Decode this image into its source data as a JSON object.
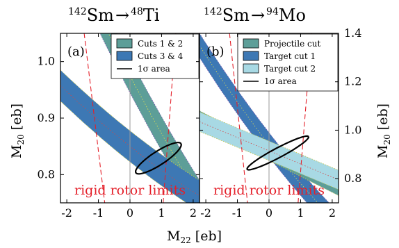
{
  "colors": {
    "cuts12": "#5d9e98",
    "cuts34": "#3d78b4",
    "projectile": "#5d9e98",
    "target1": "#3d78b4",
    "target2": "#a8d9e4",
    "rigid": "#e4202a",
    "frame": "#000000",
    "zero_line": "#9a9a9a"
  },
  "axes": {
    "x_label_main": "M",
    "x_label_sub": "22",
    "x_label_unit": " [eb]",
    "y_label_main": "M",
    "y_label_sub": "20",
    "y_label_unit": " [eb]",
    "x_ticks": [
      "-2",
      "-1",
      "0",
      "1",
      "2"
    ]
  },
  "chart_data": [
    {
      "type": "area",
      "panel": "(a)",
      "title_projectile_mass": "142",
      "title_projectile": "Sm",
      "title_arrow": "→",
      "title_target_mass": "48",
      "title_target": "Ti",
      "xlim": [
        -2.2,
        2.2
      ],
      "ylim": [
        0.75,
        1.05
      ],
      "y_ticks": [
        "0.8",
        "0.9",
        "1.0"
      ],
      "grid": false,
      "legend_position": "top-right",
      "legend": [
        {
          "label": "Cuts 1 & 2",
          "kind": "patch",
          "color": "#5d9e98"
        },
        {
          "label": "Cuts 3 & 4",
          "kind": "patch",
          "color": "#3d78b4"
        },
        {
          "label": "1σ area",
          "kind": "line",
          "color": "#000000"
        }
      ],
      "series": [
        {
          "name": "Cuts 1 & 2",
          "color": "#5d9e98",
          "curvature": 0.02,
          "upper": [
            [
              -2.2,
              1.26
            ],
            [
              2.2,
              0.79
            ]
          ],
          "lower": [
            [
              -2.2,
              1.2
            ],
            [
              2.2,
              0.73
            ]
          ]
        },
        {
          "name": "Cuts 3 & 4",
          "color": "#3d78b4",
          "curvature": 0.01,
          "upper": [
            [
              -2.2,
              0.985
            ],
            [
              2.2,
              0.79
            ]
          ],
          "lower": [
            [
              -2.2,
              0.93
            ],
            [
              2.2,
              0.735
            ]
          ]
        }
      ],
      "sigma_area": {
        "cx": 0.9,
        "cy": 0.829,
        "rx": 0.85,
        "ry": 0.012,
        "angle_deg": -33
      },
      "rigid_rotor": {
        "label": "rigid rotor limits",
        "lines": [
          [
            [
              -1.45,
              1.05
            ],
            [
              -0.8,
              0.75
            ]
          ],
          [
            [
              1.05,
              0.75
            ],
            [
              1.45,
              1.05
            ]
          ]
        ]
      }
    },
    {
      "type": "area",
      "panel": "(b)",
      "title_projectile_mass": "142",
      "title_projectile": "Sm",
      "title_arrow": "→",
      "title_target_mass": "94",
      "title_target": "Mo",
      "xlim": [
        -2.2,
        2.2
      ],
      "ylim": [
        0.7,
        1.4
      ],
      "y_ticks": [
        "0.8",
        "1.0",
        "1.2",
        "1.4"
      ],
      "grid": false,
      "legend_position": "top-right",
      "legend": [
        {
          "label": "Projectile cut",
          "kind": "patch",
          "color": "#5d9e98"
        },
        {
          "label": "Target cut 1",
          "kind": "patch",
          "color": "#3d78b4"
        },
        {
          "label": "Target cut 2",
          "kind": "patch",
          "color": "#a8d9e4"
        },
        {
          "label": "1σ area",
          "kind": "line",
          "color": "#000000"
        }
      ],
      "series": [
        {
          "name": "Target cut 1",
          "color": "#3d78b4",
          "curvature": 0.04,
          "upper": [
            [
              -2.2,
              1.4
            ],
            [
              2.2,
              0.66
            ]
          ],
          "lower": [
            [
              -2.2,
              1.3
            ],
            [
              2.2,
              0.56
            ]
          ]
        },
        {
          "name": "Projectile cut",
          "color": "#5d9e98",
          "curvature": 0.0,
          "upper": [
            [
              -2.2,
              1.08
            ],
            [
              2.2,
              0.79
            ]
          ],
          "lower": [
            [
              -2.2,
              1.02
            ],
            [
              2.2,
              0.73
            ]
          ]
        },
        {
          "name": "Target cut 2",
          "color": "#a8d9e4",
          "curvature": 0.0,
          "upper": [
            [
              -2.2,
              1.075
            ],
            [
              2.2,
              0.835
            ]
          ],
          "lower": [
            [
              -2.2,
              0.995
            ],
            [
              2.2,
              0.755
            ]
          ]
        }
      ],
      "sigma_area": {
        "cx": 0.28,
        "cy": 0.906,
        "rx": 1.1,
        "ry": 0.02,
        "angle_deg": -28
      },
      "rigid_rotor": {
        "label": "rigid rotor limits",
        "lines": [
          [
            [
              -1.25,
              1.4
            ],
            [
              -0.68,
              0.7
            ]
          ],
          [
            [
              0.92,
              0.7
            ],
            [
              1.35,
              1.4
            ]
          ]
        ]
      }
    }
  ]
}
